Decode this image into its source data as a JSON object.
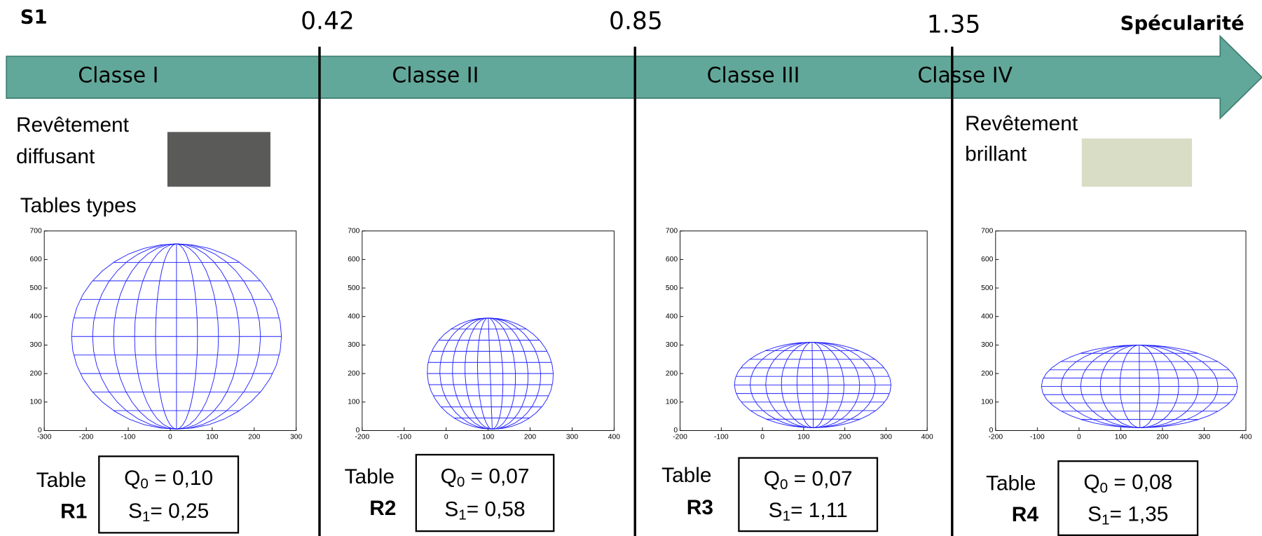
{
  "header": {
    "label": "S1",
    "axis_title": "Spécularité"
  },
  "thresholds": [
    "0.42",
    "0.85",
    "1.35"
  ],
  "classes": [
    "Classe I",
    "Classe II",
    "Classe III",
    "Classe IV"
  ],
  "coatings": [
    {
      "line1": "Revêtement",
      "line2": "diffusant"
    },
    {
      "line1": "Revêtement",
      "line2": "brillant"
    }
  ],
  "section_title": "Tables types",
  "plots": [
    {
      "yticks": [
        0,
        100,
        200,
        300,
        400,
        500,
        600,
        700
      ],
      "xticks": [
        -300,
        -200,
        -100,
        0,
        100,
        200,
        300
      ],
      "table_label": "Table",
      "table_id": "R1",
      "q_symbol": "Q",
      "q_sub": "0",
      "q_text": " = 0,10",
      "s_symbol": "S",
      "s_sub": "1",
      "s_text": "= 0,25"
    },
    {
      "yticks": [
        0,
        100,
        200,
        300,
        400,
        500,
        600,
        700
      ],
      "xticks": [
        -200,
        -100,
        0,
        100,
        200,
        300,
        400
      ],
      "table_label": "Table",
      "table_id": "R2",
      "q_symbol": "Q",
      "q_sub": "0",
      "q_text": " = 0,07",
      "s_symbol": "S",
      "s_sub": "1",
      "s_text": "= 0,58"
    },
    {
      "yticks": [
        0,
        100,
        200,
        300,
        400,
        500,
        600,
        700
      ],
      "xticks": [
        -200,
        -100,
        0,
        100,
        200,
        300,
        400
      ],
      "table_label": "Table",
      "table_id": "R3",
      "q_symbol": "Q",
      "q_sub": "0",
      "q_text": " = 0,07",
      "s_symbol": "S",
      "s_sub": "1",
      "s_text": "= 1,11"
    },
    {
      "yticks": [
        0,
        100,
        200,
        300,
        400,
        500,
        600,
        700
      ],
      "xticks": [
        -200,
        -100,
        0,
        100,
        200,
        300,
        400
      ],
      "table_label": "Table",
      "table_id": "R4",
      "q_symbol": "Q",
      "q_sub": "0",
      "q_text": " = 0,08",
      "s_symbol": "S",
      "s_sub": "1",
      "s_text": "= 1,35"
    }
  ]
}
